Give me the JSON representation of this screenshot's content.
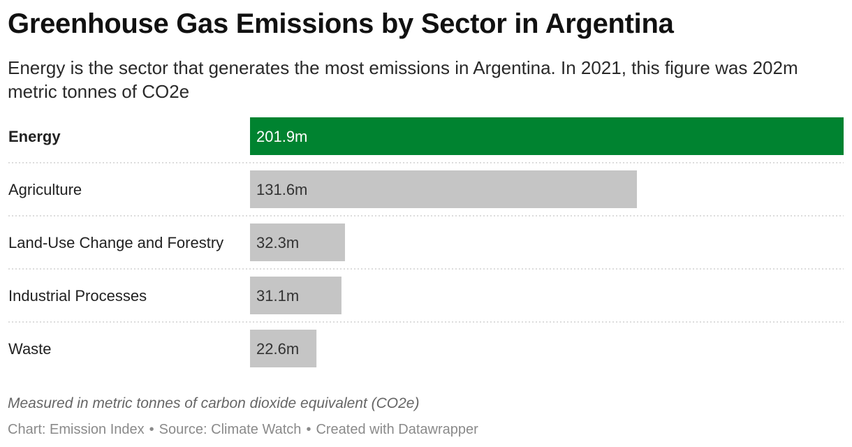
{
  "header": {
    "title": "Greenhouse Gas Emissions by Sector in Argentina",
    "subtitle": "Energy is the sector that generates the most emissions in Argentina. In 2021, this figure was 202m metric tonnes of CO2e"
  },
  "footer": {
    "notes": "Measured in metric tonnes of carbon dioxide equivalent (CO2e)",
    "chart_credit": "Chart: Emission Index",
    "source_credit": "Source: Climate Watch",
    "tool_credit": "Created with Datawrapper",
    "separator": "•"
  },
  "colors": {
    "highlight": "#008330",
    "default_bar": "#c5c5c5",
    "highlight_text": "#ffffff",
    "default_text": "#333333",
    "divider": "#d0d0d0"
  },
  "chart_data": {
    "type": "bar",
    "orientation": "horizontal",
    "categories": [
      "Energy",
      "Agriculture",
      "Land-Use Change and Forestry",
      "Industrial Processes",
      "Waste"
    ],
    "values": [
      201.9,
      131.6,
      32.3,
      31.1,
      22.6
    ],
    "value_labels": [
      "201.9m",
      "131.6m",
      "32.3m",
      "31.1m",
      "22.6m"
    ],
    "highlighted": [
      "Energy"
    ],
    "unit": "m",
    "xlim": [
      0,
      201.9
    ]
  }
}
